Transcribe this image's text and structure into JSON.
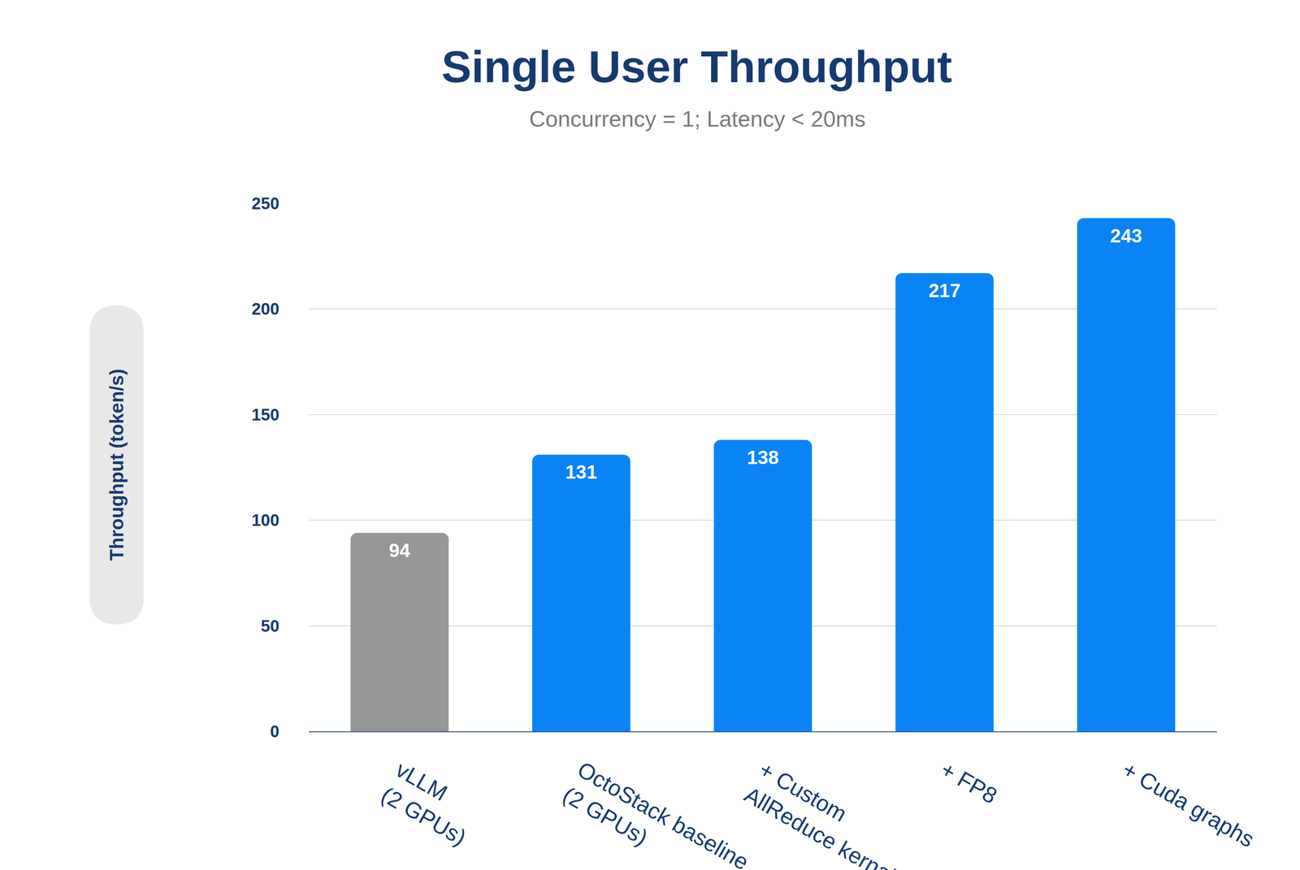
{
  "chart_data": {
    "type": "bar",
    "title": "Single User Throughput",
    "subtitle": "Concurrency = 1; Latency < 20ms",
    "y_label": "Throughput (token/s)",
    "categories": [
      "vLLM\n(2 GPUs)",
      "OctoStack baseline\n(2 GPUs)",
      "+ Custom\nAllReduce kernal",
      "+ FP8",
      "+ Cuda graphs"
    ],
    "values": [
      94,
      131,
      138,
      217,
      243
    ],
    "colors": [
      "#969696",
      "#0a84f5",
      "#0a84f5",
      "#0a84f5",
      "#0a84f5"
    ],
    "ylim": [
      0,
      250
    ],
    "yticks": [
      0,
      50,
      100,
      150,
      200,
      250
    ],
    "grid": true,
    "data_labels": true
  }
}
